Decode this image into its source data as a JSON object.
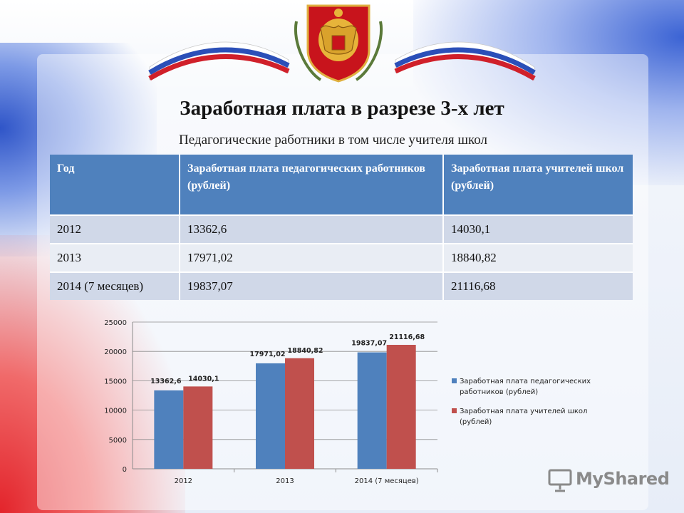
{
  "page": {
    "title": "Заработная плата в разрезе 3-х лет",
    "subtitle": "Педагогические работники в том числе учителя школ"
  },
  "table": {
    "headers": [
      "Год",
      "Заработная плата педагогических работников (рублей)",
      "Заработная плата учителей школ (рублей)"
    ],
    "rows": [
      [
        "2012",
        "13362,6",
        "14030,1"
      ],
      [
        "2013",
        "17971,02",
        "18840,82"
      ],
      [
        "2014 (7 месяцев)",
        "19837,07",
        "21116,68"
      ]
    ]
  },
  "chart_data": {
    "type": "bar",
    "categories": [
      "2012",
      "2013",
      "2014 (7 месяцев)"
    ],
    "series": [
      {
        "name": "Заработная плата педагогических работников (рублей)",
        "values": [
          13362.6,
          17971.02,
          19837.07
        ],
        "labels": [
          "13362,6",
          "17971,02",
          "19837,07"
        ],
        "color": "#4f81bd"
      },
      {
        "name": "Заработная плата учителей школ (рублей)",
        "values": [
          14030.1,
          18840.82,
          21116.68
        ],
        "labels": [
          "14030,1",
          "18840,82",
          "21116,68"
        ],
        "color": "#c0504d"
      }
    ],
    "yticks": [
      "0",
      "5000",
      "10000",
      "15000",
      "20000",
      "25000"
    ],
    "ylim": [
      0,
      25000
    ],
    "grid": true,
    "legend": "right"
  },
  "watermark": {
    "text": "MyShared"
  },
  "colors": {
    "header_bg": "#4f81bd",
    "row_dark": "#d0d8e8",
    "row_light": "#e9edf4"
  }
}
